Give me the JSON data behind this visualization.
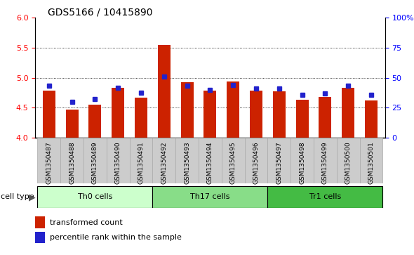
{
  "title": "GDS5166 / 10415890",
  "samples": [
    "GSM1350487",
    "GSM1350488",
    "GSM1350489",
    "GSM1350490",
    "GSM1350491",
    "GSM1350492",
    "GSM1350493",
    "GSM1350494",
    "GSM1350495",
    "GSM1350496",
    "GSM1350497",
    "GSM1350498",
    "GSM1350499",
    "GSM1350500",
    "GSM1350501"
  ],
  "red_values": [
    4.78,
    4.47,
    4.55,
    4.83,
    4.67,
    5.55,
    4.93,
    4.78,
    4.94,
    4.78,
    4.77,
    4.63,
    4.68,
    4.83,
    4.62
  ],
  "blue_values": [
    4.87,
    4.6,
    4.65,
    4.83,
    4.75,
    5.02,
    4.87,
    4.8,
    4.88,
    4.82,
    4.82,
    4.72,
    4.74,
    4.87,
    4.72
  ],
  "ylim_left": [
    4.0,
    6.0
  ],
  "yticks_left": [
    4.0,
    4.5,
    5.0,
    5.5,
    6.0
  ],
  "ylim_right": [
    0,
    100
  ],
  "yticks_right": [
    0,
    25,
    50,
    75,
    100
  ],
  "yticklabels_right": [
    "0",
    "25",
    "50",
    "75",
    "100%"
  ],
  "cell_groups": [
    {
      "label": "Th0 cells",
      "start": 0,
      "end": 5,
      "color": "#ccffcc"
    },
    {
      "label": "Th17 cells",
      "start": 5,
      "end": 10,
      "color": "#88dd88"
    },
    {
      "label": "Tr1 cells",
      "start": 10,
      "end": 15,
      "color": "#44bb44"
    }
  ],
  "bar_width": 0.55,
  "red_color": "#cc2200",
  "blue_color": "#2222cc",
  "tick_bg_color": "#cccccc",
  "cell_type_label": "cell type",
  "legend_red": "transformed count",
  "legend_blue": "percentile rank within the sample",
  "title_fontsize": 10,
  "tick_fontsize": 6.5,
  "group_fontsize": 8,
  "legend_fontsize": 8
}
